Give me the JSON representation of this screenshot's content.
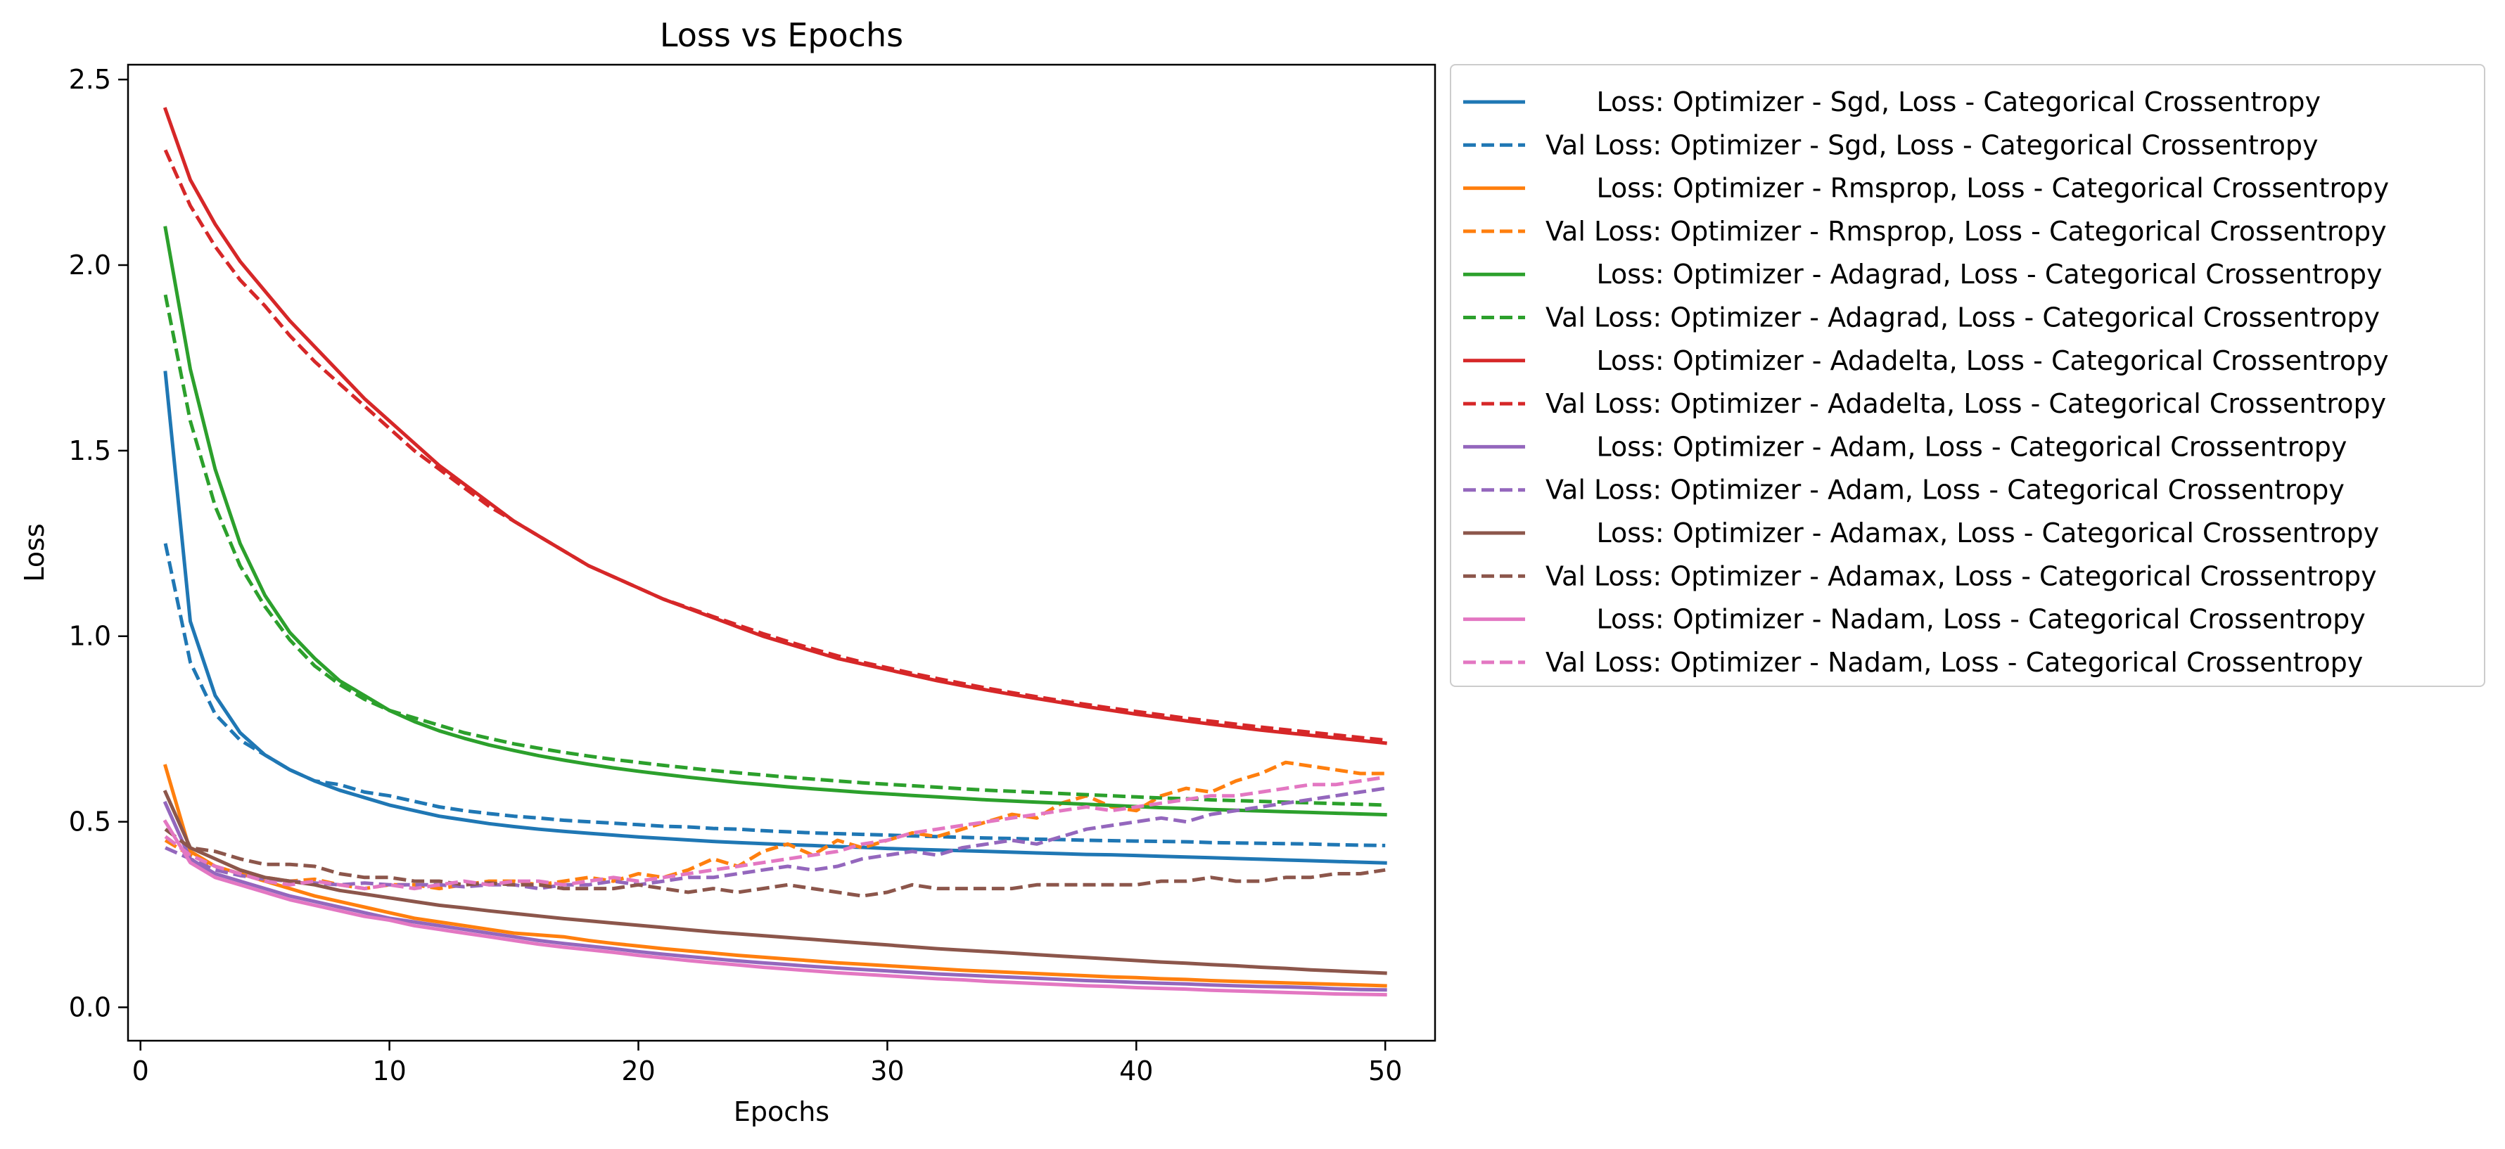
{
  "chart_data": {
    "type": "line",
    "title": "Loss vs Epochs",
    "xlabel": "Epochs",
    "ylabel": "Loss",
    "xlim": [
      -0.5,
      52.0
    ],
    "ylim": [
      -0.09,
      2.54
    ],
    "xticks": [
      0,
      10,
      20,
      30,
      40,
      50
    ],
    "yticks": [
      0.0,
      0.5,
      1.0,
      1.5,
      2.0,
      2.5
    ],
    "xtick_labels": [
      "0",
      "10",
      "20",
      "30",
      "40",
      "50"
    ],
    "ytick_labels": [
      "0.0",
      "0.5",
      "1.0",
      "1.5",
      "2.0",
      "2.5"
    ],
    "grid": false,
    "legend_position": "outside-right-top",
    "x": [
      1,
      2,
      3,
      4,
      5,
      6,
      7,
      8,
      9,
      10,
      11,
      12,
      13,
      14,
      15,
      16,
      17,
      18,
      19,
      20,
      21,
      22,
      23,
      24,
      25,
      26,
      27,
      28,
      29,
      30,
      31,
      32,
      33,
      34,
      35,
      36,
      37,
      38,
      39,
      40,
      41,
      42,
      43,
      44,
      45,
      46,
      47,
      48,
      49,
      50
    ],
    "series": [
      {
        "name": "      Loss: Optimizer - Sgd, Loss - Categorical Crossentropy",
        "color": "#1f77b4",
        "dash": "solid",
        "values": [
          1.71,
          1.04,
          0.84,
          0.74,
          0.68,
          0.64,
          0.61,
          0.585,
          0.565,
          0.545,
          0.53,
          0.515,
          0.505,
          0.495,
          0.487,
          0.48,
          0.474,
          0.469,
          0.464,
          0.459,
          0.455,
          0.451,
          0.447,
          0.444,
          0.441,
          0.438,
          0.436,
          0.433,
          0.431,
          0.428,
          0.426,
          0.424,
          0.422,
          0.42,
          0.418,
          0.416,
          0.414,
          0.412,
          0.411,
          0.409,
          0.407,
          0.405,
          0.403,
          0.401,
          0.399,
          0.397,
          0.395,
          0.393,
          0.391,
          0.389
        ]
      },
      {
        "name": "Val Loss: Optimizer - Sgd, Loss - Categorical Crossentropy",
        "color": "#1f77b4",
        "dash": "dashed",
        "values": [
          1.25,
          0.93,
          0.79,
          0.72,
          0.68,
          0.64,
          0.61,
          0.6,
          0.58,
          0.57,
          0.555,
          0.54,
          0.53,
          0.522,
          0.515,
          0.51,
          0.504,
          0.5,
          0.496,
          0.492,
          0.488,
          0.486,
          0.482,
          0.48,
          0.476,
          0.473,
          0.47,
          0.468,
          0.466,
          0.464,
          0.462,
          0.46,
          0.458,
          0.456,
          0.455,
          0.453,
          0.452,
          0.45,
          0.449,
          0.448,
          0.447,
          0.446,
          0.444,
          0.443,
          0.442,
          0.441,
          0.44,
          0.438,
          0.437,
          0.436
        ]
      },
      {
        "name": "      Loss: Optimizer - Rmsprop, Loss - Categorical Crossentropy",
        "color": "#ff7f0e",
        "dash": "solid",
        "values": [
          0.65,
          0.42,
          0.38,
          0.36,
          0.34,
          0.32,
          0.3,
          0.285,
          0.27,
          0.255,
          0.24,
          0.23,
          0.22,
          0.21,
          0.2,
          0.195,
          0.19,
          0.18,
          0.172,
          0.165,
          0.158,
          0.152,
          0.146,
          0.14,
          0.135,
          0.13,
          0.125,
          0.12,
          0.116,
          0.112,
          0.108,
          0.104,
          0.1,
          0.097,
          0.094,
          0.091,
          0.088,
          0.085,
          0.082,
          0.08,
          0.077,
          0.075,
          0.072,
          0.07,
          0.068,
          0.066,
          0.064,
          0.062,
          0.06,
          0.058
        ]
      },
      {
        "name": "Val Loss: Optimizer - Rmsprop, Loss - Categorical Crossentropy",
        "color": "#ff7f0e",
        "dash": "dashed",
        "values": [
          0.45,
          0.41,
          0.38,
          0.36,
          0.35,
          0.34,
          0.345,
          0.33,
          0.32,
          0.33,
          0.33,
          0.32,
          0.33,
          0.34,
          0.34,
          0.33,
          0.34,
          0.35,
          0.34,
          0.36,
          0.35,
          0.37,
          0.4,
          0.38,
          0.42,
          0.44,
          0.41,
          0.45,
          0.43,
          0.45,
          0.47,
          0.46,
          0.48,
          0.5,
          0.52,
          0.51,
          0.55,
          0.57,
          0.54,
          0.53,
          0.57,
          0.59,
          0.58,
          0.61,
          0.63,
          0.66,
          0.65,
          0.64,
          0.63,
          0.63
        ]
      },
      {
        "name": "      Loss: Optimizer - Adagrad, Loss - Categorical Crossentropy",
        "color": "#2ca02c",
        "dash": "solid",
        "values": [
          2.1,
          1.72,
          1.45,
          1.25,
          1.11,
          1.01,
          0.94,
          0.88,
          0.84,
          0.8,
          0.77,
          0.745,
          0.725,
          0.707,
          0.692,
          0.678,
          0.666,
          0.655,
          0.645,
          0.636,
          0.628,
          0.62,
          0.613,
          0.606,
          0.6,
          0.594,
          0.589,
          0.584,
          0.579,
          0.575,
          0.571,
          0.567,
          0.563,
          0.559,
          0.556,
          0.553,
          0.55,
          0.547,
          0.544,
          0.541,
          0.538,
          0.536,
          0.533,
          0.531,
          0.529,
          0.527,
          0.525,
          0.523,
          0.521,
          0.519
        ]
      },
      {
        "name": "Val Loss: Optimizer - Adagrad, Loss - Categorical Crossentropy",
        "color": "#2ca02c",
        "dash": "dashed",
        "values": [
          1.92,
          1.58,
          1.35,
          1.19,
          1.08,
          0.99,
          0.92,
          0.87,
          0.83,
          0.8,
          0.78,
          0.76,
          0.74,
          0.725,
          0.71,
          0.698,
          0.687,
          0.677,
          0.668,
          0.66,
          0.652,
          0.645,
          0.638,
          0.632,
          0.626,
          0.62,
          0.615,
          0.61,
          0.605,
          0.601,
          0.597,
          0.593,
          0.589,
          0.585,
          0.582,
          0.579,
          0.576,
          0.573,
          0.57,
          0.567,
          0.564,
          0.562,
          0.559,
          0.557,
          0.555,
          0.553,
          0.551,
          0.549,
          0.547,
          0.545
        ]
      },
      {
        "name": "      Loss: Optimizer - Adadelta, Loss - Categorical Crossentropy",
        "color": "#d62728",
        "dash": "solid",
        "values": [
          2.42,
          2.23,
          2.11,
          2.01,
          1.93,
          1.85,
          1.78,
          1.71,
          1.64,
          1.58,
          1.52,
          1.46,
          1.41,
          1.36,
          1.31,
          1.27,
          1.23,
          1.19,
          1.16,
          1.13,
          1.1,
          1.075,
          1.05,
          1.025,
          1.0,
          0.98,
          0.96,
          0.94,
          0.925,
          0.91,
          0.895,
          0.88,
          0.867,
          0.855,
          0.843,
          0.832,
          0.821,
          0.81,
          0.8,
          0.79,
          0.781,
          0.772,
          0.763,
          0.755,
          0.747,
          0.74,
          0.733,
          0.726,
          0.719,
          0.712
        ]
      },
      {
        "name": "Val Loss: Optimizer - Adadelta, Loss - Categorical Crossentropy",
        "color": "#d62728",
        "dash": "dashed",
        "values": [
          2.31,
          2.16,
          2.05,
          1.96,
          1.89,
          1.81,
          1.74,
          1.68,
          1.62,
          1.56,
          1.5,
          1.45,
          1.4,
          1.35,
          1.31,
          1.27,
          1.23,
          1.19,
          1.16,
          1.13,
          1.1,
          1.077,
          1.053,
          1.03,
          1.007,
          0.986,
          0.966,
          0.947,
          0.93,
          0.915,
          0.9,
          0.886,
          0.873,
          0.86,
          0.848,
          0.837,
          0.826,
          0.816,
          0.806,
          0.797,
          0.788,
          0.779,
          0.771,
          0.763,
          0.755,
          0.748,
          0.741,
          0.734,
          0.727,
          0.72
        ]
      },
      {
        "name": "      Loss: Optimizer - Adam, Loss - Categorical Crossentropy",
        "color": "#9467bd",
        "dash": "solid",
        "values": [
          0.55,
          0.4,
          0.36,
          0.34,
          0.32,
          0.3,
          0.285,
          0.27,
          0.255,
          0.24,
          0.23,
          0.22,
          0.21,
          0.2,
          0.19,
          0.18,
          0.172,
          0.165,
          0.158,
          0.15,
          0.143,
          0.137,
          0.131,
          0.125,
          0.12,
          0.115,
          0.11,
          0.106,
          0.102,
          0.098,
          0.094,
          0.09,
          0.087,
          0.084,
          0.081,
          0.078,
          0.075,
          0.072,
          0.07,
          0.067,
          0.065,
          0.063,
          0.06,
          0.058,
          0.056,
          0.055,
          0.053,
          0.05,
          0.048,
          0.047
        ]
      },
      {
        "name": "Val Loss: Optimizer - Adam, Loss - Categorical Crossentropy",
        "color": "#9467bd",
        "dash": "dashed",
        "values": [
          0.43,
          0.4,
          0.37,
          0.355,
          0.345,
          0.34,
          0.335,
          0.33,
          0.335,
          0.33,
          0.33,
          0.33,
          0.325,
          0.33,
          0.33,
          0.32,
          0.33,
          0.33,
          0.34,
          0.33,
          0.34,
          0.35,
          0.35,
          0.36,
          0.37,
          0.38,
          0.37,
          0.38,
          0.4,
          0.41,
          0.42,
          0.41,
          0.43,
          0.44,
          0.45,
          0.44,
          0.46,
          0.48,
          0.49,
          0.5,
          0.51,
          0.5,
          0.52,
          0.53,
          0.54,
          0.55,
          0.56,
          0.57,
          0.58,
          0.59
        ]
      },
      {
        "name": "      Loss: Optimizer - Adamax, Loss - Categorical Crossentropy",
        "color": "#8c564b",
        "dash": "solid",
        "values": [
          0.58,
          0.43,
          0.4,
          0.37,
          0.35,
          0.34,
          0.33,
          0.315,
          0.305,
          0.295,
          0.285,
          0.275,
          0.268,
          0.26,
          0.253,
          0.246,
          0.239,
          0.233,
          0.227,
          0.221,
          0.215,
          0.209,
          0.203,
          0.198,
          0.193,
          0.188,
          0.183,
          0.178,
          0.173,
          0.168,
          0.163,
          0.158,
          0.154,
          0.15,
          0.146,
          0.142,
          0.138,
          0.134,
          0.13,
          0.126,
          0.122,
          0.119,
          0.115,
          0.112,
          0.108,
          0.105,
          0.101,
          0.098,
          0.095,
          0.092
        ]
      },
      {
        "name": "Val Loss: Optimizer - Adamax, Loss - Categorical Crossentropy",
        "color": "#8c564b",
        "dash": "dashed",
        "values": [
          0.48,
          0.43,
          0.42,
          0.4,
          0.385,
          0.385,
          0.38,
          0.36,
          0.35,
          0.35,
          0.34,
          0.34,
          0.33,
          0.335,
          0.33,
          0.33,
          0.32,
          0.32,
          0.32,
          0.33,
          0.32,
          0.31,
          0.32,
          0.31,
          0.32,
          0.33,
          0.32,
          0.31,
          0.3,
          0.31,
          0.33,
          0.32,
          0.32,
          0.32,
          0.32,
          0.33,
          0.33,
          0.33,
          0.33,
          0.33,
          0.34,
          0.34,
          0.35,
          0.34,
          0.34,
          0.35,
          0.35,
          0.36,
          0.36,
          0.37
        ]
      },
      {
        "name": "      Loss: Optimizer - Nadam, Loss - Categorical Crossentropy",
        "color": "#e377c2",
        "dash": "solid",
        "values": [
          0.5,
          0.39,
          0.35,
          0.33,
          0.31,
          0.29,
          0.275,
          0.26,
          0.245,
          0.235,
          0.22,
          0.21,
          0.2,
          0.19,
          0.18,
          0.17,
          0.162,
          0.155,
          0.148,
          0.14,
          0.133,
          0.126,
          0.12,
          0.114,
          0.108,
          0.103,
          0.098,
          0.093,
          0.089,
          0.085,
          0.081,
          0.077,
          0.074,
          0.07,
          0.067,
          0.064,
          0.061,
          0.058,
          0.056,
          0.053,
          0.051,
          0.049,
          0.046,
          0.044,
          0.042,
          0.04,
          0.038,
          0.036,
          0.035,
          0.034
        ]
      },
      {
        "name": "Val Loss: Optimizer - Nadam, Loss - Categorical Crossentropy",
        "color": "#e377c2",
        "dash": "dashed",
        "values": [
          0.46,
          0.41,
          0.38,
          0.36,
          0.34,
          0.33,
          0.34,
          0.33,
          0.32,
          0.33,
          0.32,
          0.33,
          0.34,
          0.33,
          0.34,
          0.34,
          0.33,
          0.34,
          0.35,
          0.34,
          0.35,
          0.36,
          0.37,
          0.38,
          0.39,
          0.4,
          0.41,
          0.42,
          0.44,
          0.45,
          0.47,
          0.48,
          0.49,
          0.5,
          0.51,
          0.52,
          0.53,
          0.54,
          0.53,
          0.54,
          0.55,
          0.56,
          0.57,
          0.57,
          0.58,
          0.59,
          0.6,
          0.6,
          0.61,
          0.62
        ]
      }
    ]
  }
}
